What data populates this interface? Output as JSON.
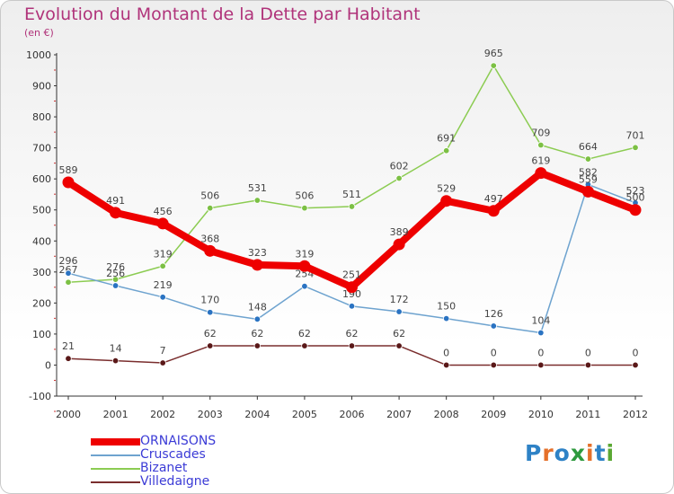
{
  "header": {
    "title": "Evolution du Montant de la Dette par Habitant",
    "subtitle": "(en €)"
  },
  "logo": {
    "text": "Proxiti",
    "colors": [
      "#2e82c6",
      "#e5702a",
      "#2e82c6",
      "#2e9a3e",
      "#e5702a",
      "#2e82c6",
      "#5aa833"
    ]
  },
  "chart_data": {
    "type": "line",
    "x": [
      "2000",
      "2001",
      "2002",
      "2003",
      "2004",
      "2005",
      "2006",
      "2007",
      "2008",
      "2009",
      "2010",
      "2011",
      "2012"
    ],
    "ylim": [
      -100,
      1000
    ],
    "yticks": [
      "-100",
      "0",
      "100",
      "200",
      "300",
      "400",
      "500",
      "600",
      "700",
      "800",
      "900",
      "1000"
    ],
    "grid": false,
    "legend": "bottom-left",
    "series": [
      {
        "name": "Bizanet",
        "color": "#8ccc52",
        "pointColor": "#7cc044",
        "width": 1.5,
        "values": [
          267,
          276,
          319,
          506,
          531,
          506,
          511,
          602,
          691,
          965,
          709,
          664,
          701
        ],
        "labels": [
          "267",
          "276",
          "319",
          "506",
          "531",
          "506",
          "511",
          "602",
          "691",
          "965",
          "709",
          "664",
          "701"
        ]
      },
      {
        "name": "Cruscades",
        "color": "#6ea3cf",
        "pointColor": "#2a73c2",
        "width": 1.5,
        "values": [
          296,
          256,
          219,
          170,
          148,
          254,
          190,
          172,
          150,
          126,
          104,
          582,
          523
        ],
        "labels": [
          "296",
          "256",
          "219",
          "170",
          "148",
          "254",
          "190",
          "172",
          "150",
          "126",
          "104",
          "582",
          "523"
        ]
      },
      {
        "name": "Villedaigne",
        "color": "#7a2e2e",
        "pointColor": "#5a1818",
        "width": 1.5,
        "values": [
          21,
          14,
          7,
          62,
          62,
          62,
          62,
          62,
          0,
          0,
          0,
          0,
          0
        ],
        "labels": [
          "21",
          "14",
          "7",
          "62",
          "62",
          "62",
          "62",
          "62",
          "0",
          "0",
          "0",
          "0",
          "0"
        ]
      },
      {
        "name": "ORNAISONS",
        "color": "#ee0000",
        "pointColor": "#ee0000",
        "width": 8,
        "values": [
          589,
          491,
          456,
          368,
          323,
          319,
          251,
          389,
          529,
          497,
          619,
          559,
          500
        ],
        "labels": [
          "589",
          "491",
          "456",
          "368",
          "323",
          "319",
          "251",
          "389",
          "529",
          "497",
          "619",
          "559",
          "500"
        ]
      }
    ],
    "legend_order": [
      "ORNAISONS",
      "Cruscades",
      "Bizanet",
      "Villedaigne"
    ]
  }
}
